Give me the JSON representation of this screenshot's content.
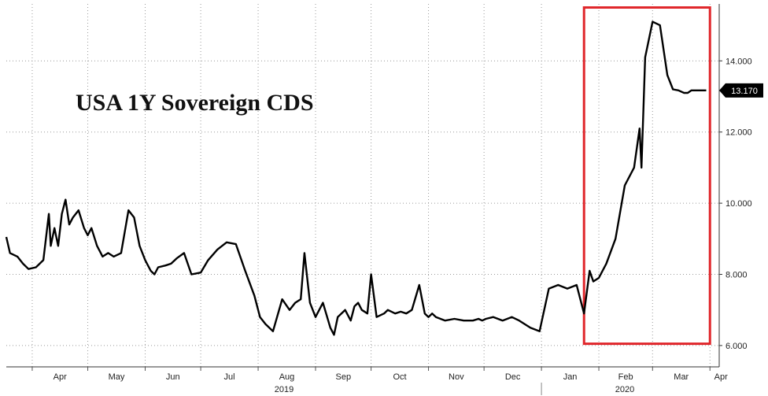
{
  "chart_data": {
    "type": "line",
    "title": "USA 1Y Sovereign CDS",
    "xlabel": "",
    "ylabel": "",
    "ylim": [
      5.4,
      15.6
    ],
    "y_ticks": [
      "6.000",
      "8.000",
      "10.000",
      "12.000",
      "14.000"
    ],
    "y_tick_values": [
      6,
      8,
      10,
      12,
      14
    ],
    "x_month_labels": [
      "Apr",
      "May",
      "Jun",
      "Jul",
      "Aug",
      "Sep",
      "Oct",
      "Nov",
      "Dec",
      "Jan",
      "Feb",
      "Mar",
      "Apr"
    ],
    "x_month_dates": [
      "2019-04-01",
      "2019-05-01",
      "2019-06-01",
      "2019-07-01",
      "2019-08-01",
      "2019-09-01",
      "2019-10-01",
      "2019-11-01",
      "2019-12-01",
      "2020-01-01",
      "2020-02-01",
      "2020-03-01",
      "2020-04-01"
    ],
    "x_year_labels": [
      "2019",
      "2020"
    ],
    "x_year_dates": [
      "2019-08-15",
      "2020-02-15"
    ],
    "xlim": [
      "2019-03-18",
      "2020-04-06"
    ],
    "last_value_label": "13.170",
    "last_value": 13.17,
    "highlight_box": {
      "x_start": "2020-01-24",
      "x_end": "2020-04-01",
      "y_low": 6.05,
      "y_high": 15.5
    },
    "grid": true,
    "line_color": "#000000",
    "highlight_color": "#e0262b",
    "series": [
      {
        "x": [
          "2019-03-18",
          "2019-03-20",
          "2019-03-24",
          "2019-03-27",
          "2019-03-30",
          "2019-04-03",
          "2019-04-07",
          "2019-04-10",
          "2019-04-11",
          "2019-04-13",
          "2019-04-15",
          "2019-04-17",
          "2019-04-19",
          "2019-04-21",
          "2019-04-23",
          "2019-04-26",
          "2019-04-29",
          "2019-05-01",
          "2019-05-03",
          "2019-05-06",
          "2019-05-09",
          "2019-05-12",
          "2019-05-15",
          "2019-05-19",
          "2019-05-23",
          "2019-05-26",
          "2019-05-29",
          "2019-06-01",
          "2019-06-04",
          "2019-06-06",
          "2019-06-08",
          "2019-06-12",
          "2019-06-15",
          "2019-06-18",
          "2019-06-22",
          "2019-06-26",
          "2019-07-01",
          "2019-07-05",
          "2019-07-10",
          "2019-07-15",
          "2019-07-20",
          "2019-07-25",
          "2019-07-30",
          "2019-08-02",
          "2019-08-05",
          "2019-08-09",
          "2019-08-14",
          "2019-08-18",
          "2019-08-21",
          "2019-08-24",
          "2019-08-26",
          "2019-08-29",
          "2019-09-01",
          "2019-09-05",
          "2019-09-09",
          "2019-09-11",
          "2019-09-13",
          "2019-09-17",
          "2019-09-20",
          "2019-09-22",
          "2019-09-24",
          "2019-09-26",
          "2019-09-29",
          "2019-10-01",
          "2019-10-04",
          "2019-10-08",
          "2019-10-10",
          "2019-10-14",
          "2019-10-17",
          "2019-10-20",
          "2019-10-23",
          "2019-10-27",
          "2019-10-30",
          "2019-11-01",
          "2019-11-03",
          "2019-11-05",
          "2019-11-10",
          "2019-11-15",
          "2019-11-20",
          "2019-11-25",
          "2019-11-28",
          "2019-11-30",
          "2019-12-02",
          "2019-12-06",
          "2019-12-11",
          "2019-12-16",
          "2019-12-20",
          "2019-12-26",
          "2019-12-31",
          "2020-01-05",
          "2020-01-10",
          "2020-01-15",
          "2020-01-20",
          "2020-01-24",
          "2020-01-27",
          "2020-01-29",
          "2020-02-01",
          "2020-02-05",
          "2020-02-10",
          "2020-02-15",
          "2020-02-20",
          "2020-02-23",
          "2020-02-24",
          "2020-02-26",
          "2020-03-01",
          "2020-03-05",
          "2020-03-09",
          "2020-03-12",
          "2020-03-15",
          "2020-03-18",
          "2020-03-20",
          "2020-03-22",
          "2020-03-24",
          "2020-03-26",
          "2020-03-28",
          "2020-03-30"
        ],
        "y": [
          9.05,
          8.6,
          8.5,
          8.3,
          8.15,
          8.2,
          8.4,
          9.7,
          8.8,
          9.3,
          8.8,
          9.7,
          10.1,
          9.4,
          9.6,
          9.8,
          9.3,
          9.1,
          9.3,
          8.8,
          8.5,
          8.6,
          8.5,
          8.6,
          9.8,
          9.6,
          8.8,
          8.4,
          8.1,
          8.0,
          8.2,
          8.25,
          8.3,
          8.45,
          8.6,
          8.0,
          8.05,
          8.4,
          8.7,
          8.9,
          8.85,
          8.1,
          7.4,
          6.8,
          6.6,
          6.4,
          7.3,
          7.0,
          7.2,
          7.3,
          8.6,
          7.2,
          6.8,
          7.2,
          6.5,
          6.3,
          6.8,
          7.0,
          6.7,
          7.1,
          7.2,
          7.0,
          6.9,
          8.0,
          6.8,
          6.9,
          7.0,
          6.9,
          6.95,
          6.9,
          7.0,
          7.7,
          6.9,
          6.8,
          6.9,
          6.8,
          6.7,
          6.75,
          6.7,
          6.7,
          6.75,
          6.7,
          6.75,
          6.8,
          6.7,
          6.8,
          6.7,
          6.5,
          6.4,
          7.6,
          7.7,
          7.6,
          7.7,
          6.9,
          8.1,
          7.8,
          7.9,
          8.3,
          9.0,
          10.5,
          11.0,
          12.1,
          11.0,
          14.1,
          15.1,
          15.0,
          13.6,
          13.2,
          13.17,
          13.1,
          13.1,
          13.17,
          13.17,
          13.17,
          13.17,
          13.17
        ],
        "note": ""
      }
    ]
  }
}
